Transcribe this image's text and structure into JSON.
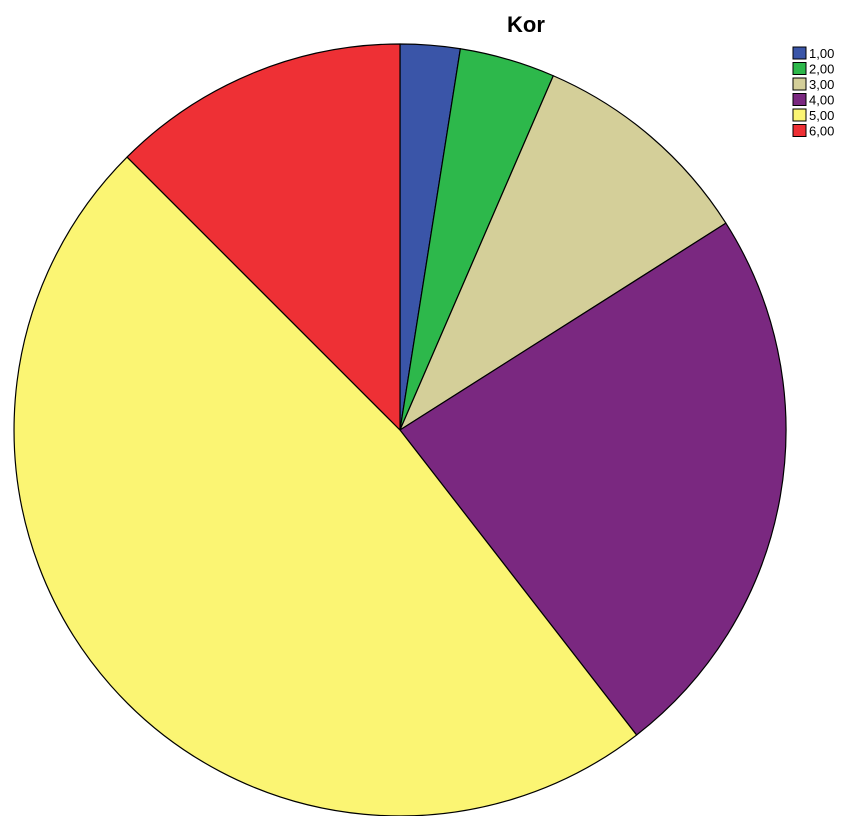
{
  "chart_data": {
    "type": "pie",
    "title": "Kor",
    "categories": [
      "1,00",
      "2,00",
      "3,00",
      "4,00",
      "5,00",
      "6,00"
    ],
    "values": [
      2.5,
      4.0,
      9.5,
      23.5,
      48.0,
      12.5
    ],
    "colors": [
      "#3a55a8",
      "#2db84b",
      "#d4cf99",
      "#7a2880",
      "#fbf573",
      "#ee3035"
    ],
    "legend_position": "top-right"
  }
}
